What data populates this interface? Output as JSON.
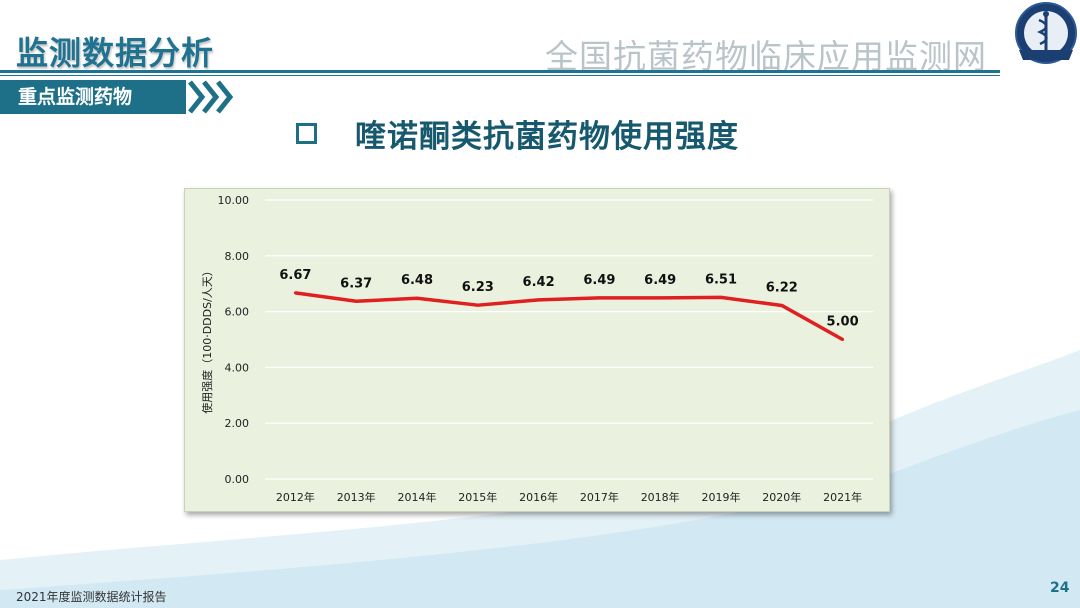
{
  "header": {
    "title": "监测数据分析",
    "org": "全国抗菌药物临床应用监测网",
    "section": "重点监测药物"
  },
  "slide": {
    "heading": "喹诺酮类抗菌药物使用强度"
  },
  "chart_data": {
    "type": "line",
    "categories": [
      "2012年",
      "2013年",
      "2014年",
      "2015年",
      "2016年",
      "2017年",
      "2018年",
      "2019年",
      "2020年",
      "2021年"
    ],
    "values": [
      6.67,
      6.37,
      6.48,
      6.23,
      6.42,
      6.49,
      6.49,
      6.51,
      6.22,
      5.0
    ],
    "value_labels": [
      "6.67",
      "6.37",
      "6.48",
      "6.23",
      "6.42",
      "6.49",
      "6.49",
      "6.51",
      "6.22",
      "5.00"
    ],
    "ylabel": "使用强度（100·DDDS/人天）",
    "ylim": [
      0,
      10
    ],
    "yticks": [
      "0.00",
      "2.00",
      "4.00",
      "6.00",
      "8.00",
      "10.00"
    ],
    "grid": true,
    "line_color": "#e02020",
    "background": "#ebf1df"
  },
  "footer": {
    "report": "2021年度监测数据统计报告",
    "page": "24"
  },
  "colors": {
    "brand": "#1d7087",
    "org_text": "#b9c4c9",
    "wave": "#dcedf5"
  }
}
